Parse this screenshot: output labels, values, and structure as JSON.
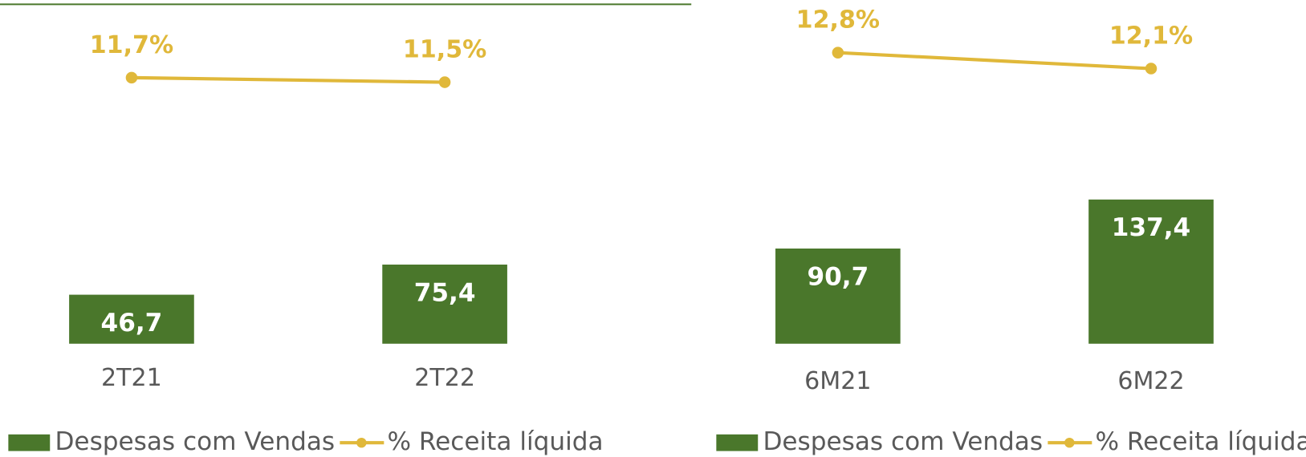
{
  "chart_data": [
    {
      "type": "bar",
      "categories": [
        "2T21",
        "2T22"
      ],
      "series": [
        {
          "name": "Despesas com Vendas",
          "color": "#4a772b",
          "values": [
            46.7,
            75.4
          ],
          "value_labels": [
            "46,7",
            "75,4"
          ]
        },
        {
          "name": "% Receita líquida",
          "color": "#e0b83a",
          "values": [
            11.7,
            11.5
          ],
          "value_labels": [
            "11,7%",
            "11,5%"
          ],
          "axis": "y2"
        }
      ],
      "ylim": [
        0,
        325
      ],
      "y2lim": [
        0,
        15
      ]
    },
    {
      "type": "bar",
      "categories": [
        "6M21",
        "6M22"
      ],
      "series": [
        {
          "name": "Despesas com Vendas",
          "color": "#4a772b",
          "values": [
            90.7,
            137.4
          ],
          "value_labels": [
            "90,7",
            "137,4"
          ]
        },
        {
          "name": "% Receita líquida",
          "color": "#e0b83a",
          "values": [
            12.8,
            12.1
          ],
          "value_labels": [
            "12,8%",
            "12,1%"
          ],
          "axis": "y2"
        }
      ],
      "ylim": [
        0,
        325
      ],
      "y2lim": [
        0,
        15
      ]
    }
  ]
}
